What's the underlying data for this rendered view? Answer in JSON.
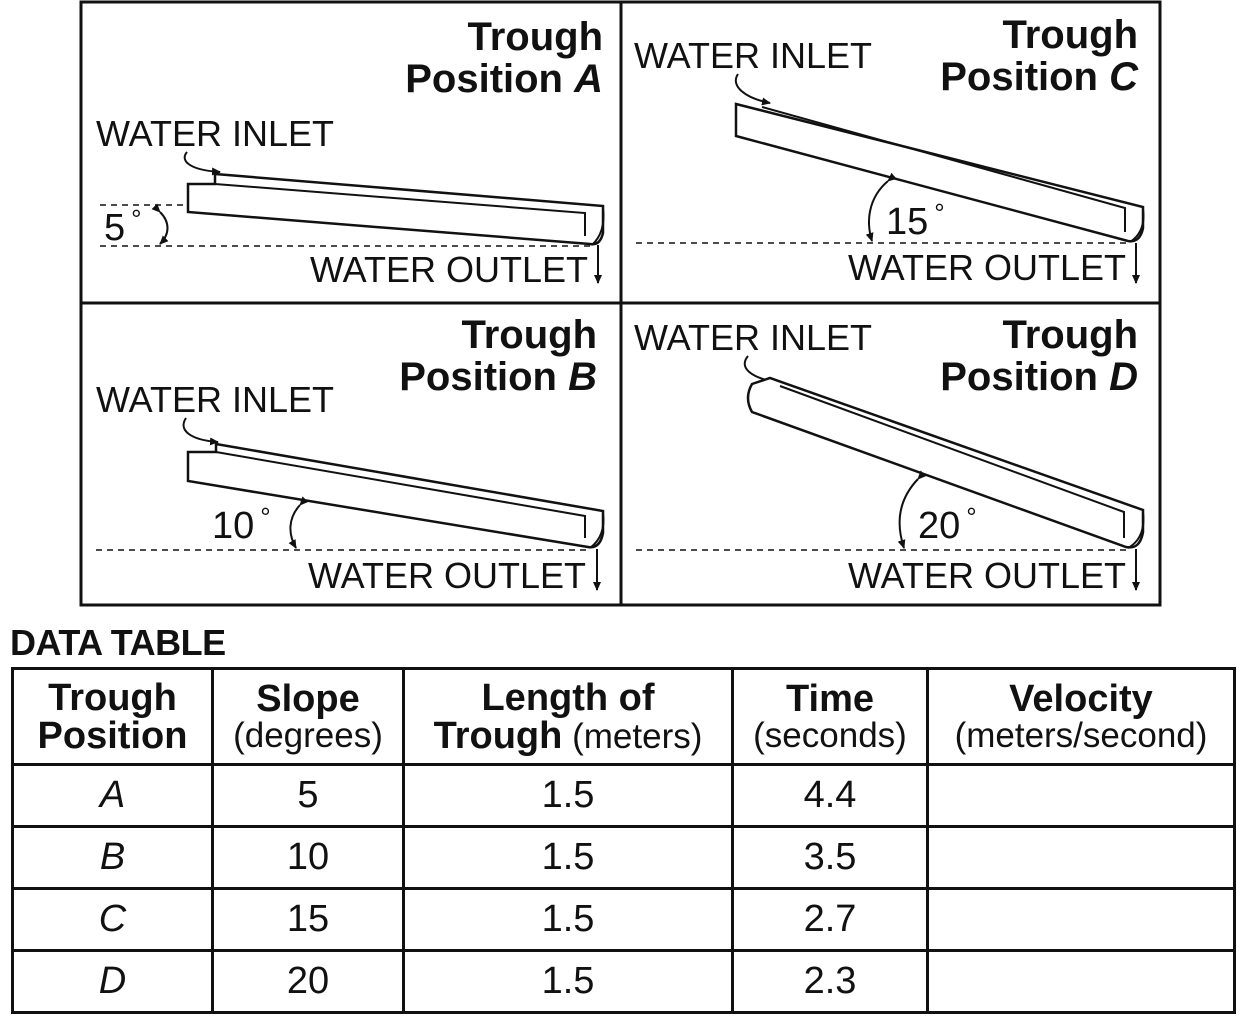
{
  "panels": [
    {
      "id": "A",
      "title_line1": "Trough",
      "title_line2": "Position ",
      "letter": "A",
      "inlet_label": "WATER INLET",
      "outlet_label": "WATER OUTLET",
      "angle_label": "5",
      "angle": 5
    },
    {
      "id": "C",
      "title_line1": "Trough",
      "title_line2": "Position ",
      "letter": "C",
      "inlet_label": "WATER INLET",
      "outlet_label": "WATER OUTLET",
      "angle_label": "15",
      "angle": 15
    },
    {
      "id": "B",
      "title_line1": "Trough",
      "title_line2": "Position ",
      "letter": "B",
      "inlet_label": "WATER INLET",
      "outlet_label": "WATER OUTLET",
      "angle_label": "10",
      "angle": 10
    },
    {
      "id": "D",
      "title_line1": "Trough",
      "title_line2": "Position ",
      "letter": "D",
      "inlet_label": "WATER INLET",
      "outlet_label": "WATER OUTLET",
      "angle_label": "20",
      "angle": 20
    }
  ],
  "degree_symbol": "°",
  "table": {
    "title": "DATA TABLE",
    "headers": [
      {
        "bold1": "Trough",
        "bold2": "Position",
        "normal": ""
      },
      {
        "bold1": "Slope",
        "bold2": "",
        "normal": "(degrees)"
      },
      {
        "bold1": "Length of",
        "bold2": "Trough",
        "normal": " (meters)"
      },
      {
        "bold1": "Time",
        "bold2": "",
        "normal": "(seconds)"
      },
      {
        "bold1": "Velocity",
        "bold2": "",
        "normal": "(meters/second)"
      }
    ],
    "rows": [
      {
        "position": "A",
        "slope": "5",
        "length": "1.5",
        "time": "4.4",
        "velocity": ""
      },
      {
        "position": "B",
        "slope": "10",
        "length": "1.5",
        "time": "3.5",
        "velocity": ""
      },
      {
        "position": "C",
        "slope": "15",
        "length": "1.5",
        "time": "2.7",
        "velocity": ""
      },
      {
        "position": "D",
        "slope": "20",
        "length": "1.5",
        "time": "2.3",
        "velocity": ""
      }
    ]
  }
}
